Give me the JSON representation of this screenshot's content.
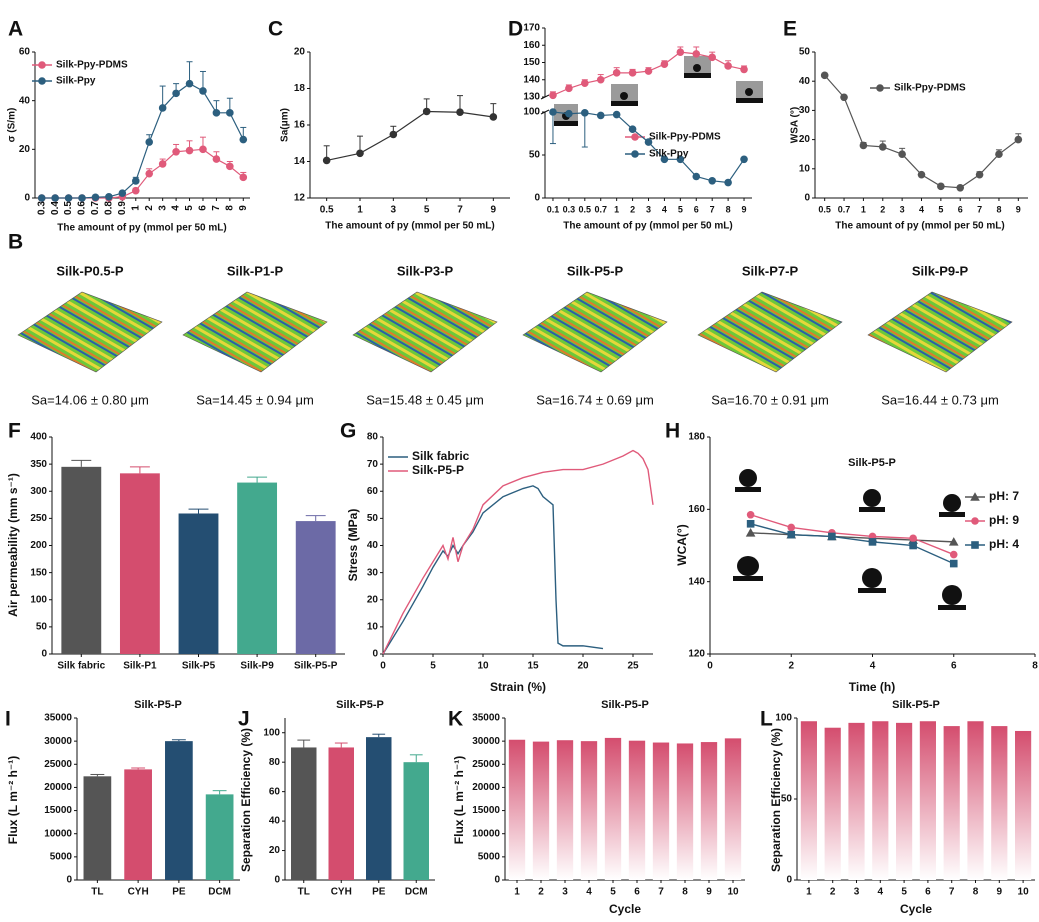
{
  "chart_data": [
    {
      "type": "line",
      "panel": "A",
      "xlabel": "The amount of py (mmol per 50 mL)",
      "ylabel": "σ (S/m)",
      "categories": [
        "0.3",
        "0.4",
        "0.5",
        "0.6",
        "0.7",
        "0.8",
        "0.9",
        "1",
        "2",
        "3",
        "4",
        "5",
        "6",
        "7",
        "8",
        "9"
      ],
      "ylim": [
        0,
        60
      ],
      "yticks": [
        0,
        20,
        40,
        60
      ],
      "series": [
        {
          "name": "Silk-Ppy-PDMS",
          "color": "#e05a7a",
          "values": [
            0,
            0,
            0,
            0,
            0,
            0,
            0.5,
            3,
            10,
            14,
            19,
            19.5,
            20,
            16,
            13,
            8.5
          ],
          "errors": [
            0,
            0,
            0,
            0,
            0,
            0,
            0.3,
            1,
            2,
            2,
            3,
            4,
            5,
            3,
            2,
            2
          ]
        },
        {
          "name": "Silk-Ppy",
          "color": "#2c5f7f",
          "values": [
            0,
            0,
            0,
            0,
            0.3,
            0.5,
            2,
            7,
            23,
            37,
            43,
            47,
            44,
            35,
            35,
            24
          ],
          "errors": [
            0,
            0,
            0,
            0,
            0.2,
            0.3,
            0.5,
            1.5,
            3,
            9,
            4,
            9,
            8,
            5,
            6,
            5
          ]
        }
      ]
    },
    {
      "type": "line",
      "panel": "C",
      "xlabel": "The amount of py (mmol per 50 mL)",
      "ylabel": "Sa(μm)",
      "categories": [
        "0.5",
        "1",
        "3",
        "5",
        "7",
        "9"
      ],
      "ylim": [
        12,
        20
      ],
      "yticks": [
        12,
        14,
        16,
        18,
        20
      ],
      "series": [
        {
          "color": "#333333",
          "values": [
            14.06,
            14.45,
            15.48,
            16.74,
            16.7,
            16.44
          ],
          "errors": [
            0.8,
            0.94,
            0.45,
            0.69,
            0.91,
            0.73
          ]
        }
      ]
    },
    {
      "type": "line",
      "panel": "D",
      "xlabel": "The amount of py (mmol per 50 mL)",
      "categories": [
        "0.1",
        "0.3",
        "0.5",
        "0.7",
        "1",
        "2",
        "3",
        "4",
        "5",
        "6",
        "7",
        "8",
        "9"
      ],
      "ylim": [
        0,
        170
      ],
      "ybreak": [
        100,
        130
      ],
      "yticks": [
        0,
        50,
        100,
        130,
        140,
        150,
        160,
        170
      ],
      "series": [
        {
          "name": "Silk-Ppy-PDMS",
          "color": "#e05a7a",
          "values": [
            131,
            135,
            138,
            140,
            144,
            144,
            145,
            149,
            156,
            155,
            153,
            148,
            146
          ],
          "errors": [
            2,
            2,
            2,
            3,
            3,
            2,
            2,
            2,
            3,
            4,
            3,
            3,
            2
          ]
        },
        {
          "name": "Silk-Ppy",
          "color": "#2c5f7f",
          "values": [
            100,
            98,
            99,
            96,
            97,
            80,
            65,
            45,
            45,
            25,
            20,
            18,
            45
          ],
          "errors": [
            3,
            2,
            2,
            2,
            2,
            2,
            2,
            2,
            2,
            2,
            2,
            2,
            2
          ]
        }
      ]
    },
    {
      "type": "line",
      "panel": "E",
      "xlabel": "The amount of py (mmol per 50 mL)",
      "ylabel": "WSA (°)",
      "categories": [
        "0.5",
        "0.7",
        "1",
        "2",
        "3",
        "4",
        "5",
        "6",
        "7",
        "8",
        "9"
      ],
      "ylim": [
        0,
        50
      ],
      "yticks": [
        0,
        10,
        20,
        30,
        40,
        50
      ],
      "series": [
        {
          "name": "Silk-Ppy-PDMS",
          "color": "#555555",
          "values": [
            42,
            34.5,
            18,
            17.5,
            15,
            8,
            4,
            3.5,
            8,
            15,
            20
          ],
          "errors": [
            0,
            0,
            1,
            2,
            2,
            0.5,
            0.5,
            0.5,
            1,
            1.5,
            2
          ]
        }
      ]
    },
    {
      "type": "image_grid",
      "panel": "B",
      "items": [
        {
          "title": "Silk-P0.5-P",
          "caption": "Sa=14.06 ± 0.80 μm"
        },
        {
          "title": "Silk-P1-P",
          "caption": "Sa=14.45 ± 0.94 μm"
        },
        {
          "title": "Silk-P3-P",
          "caption": "Sa=15.48 ± 0.45 μm"
        },
        {
          "title": "Silk-P5-P",
          "caption": "Sa=16.74 ± 0.69 μm"
        },
        {
          "title": "Silk-P7-P",
          "caption": "Sa=16.70 ± 0.91 μm"
        },
        {
          "title": "Silk-P9-P",
          "caption": "Sa=16.44 ± 0.73 μm"
        }
      ]
    },
    {
      "type": "bar",
      "panel": "F",
      "ylabel": "Air permeability (mm s⁻¹)",
      "categories": [
        "Silk fabric",
        "Silk-P1",
        "Silk-P5",
        "Silk-P9",
        "Silk-P5-P"
      ],
      "values": [
        345,
        333,
        259,
        316,
        245
      ],
      "errors": [
        12,
        12,
        8,
        10,
        10
      ],
      "colors": [
        "#555555",
        "#d44d6e",
        "#244e72",
        "#43a98e",
        "#6c6aa6"
      ],
      "ylim": [
        0,
        400
      ],
      "yticks": [
        0,
        50,
        100,
        150,
        200,
        250,
        300,
        350,
        400
      ]
    },
    {
      "type": "xyline",
      "panel": "G",
      "xlabel": "Strain (%)",
      "ylabel": "Stress (MPa)",
      "xlim": [
        0,
        27
      ],
      "xticks": [
        0,
        5,
        10,
        15,
        20,
        25
      ],
      "ylim": [
        0,
        80
      ],
      "yticks": [
        0,
        10,
        20,
        30,
        40,
        50,
        60,
        70,
        80
      ],
      "series": [
        {
          "name": "Silk fabric",
          "color": "#2c5f7f",
          "x": [
            0,
            2,
            4,
            5,
            6,
            6.5,
            7,
            7.5,
            8,
            9,
            10,
            12,
            14,
            15,
            15.5,
            16,
            17,
            17.3,
            17.5,
            18,
            20,
            21,
            22
          ],
          "values": [
            0,
            12,
            25,
            32,
            38,
            36,
            40,
            37,
            40,
            45,
            52,
            58,
            61,
            62,
            61,
            58,
            55,
            20,
            4,
            3,
            3,
            2.5,
            2
          ]
        },
        {
          "name": "Silk-P5-P",
          "color": "#e05a7a",
          "x": [
            0,
            2,
            4,
            5.5,
            6,
            6.5,
            7,
            7.5,
            8,
            9,
            10,
            12,
            14,
            16,
            18,
            20,
            22,
            24,
            25,
            25.5,
            26,
            26.5,
            27
          ],
          "values": [
            0,
            15,
            28,
            37,
            40,
            35,
            43,
            34,
            40,
            46,
            55,
            62,
            65,
            67,
            68,
            68,
            70,
            73,
            75,
            74,
            72,
            68,
            55
          ]
        }
      ]
    },
    {
      "type": "xyline",
      "panel": "H",
      "title": "Silk-P5-P",
      "xlabel": "Time (h)",
      "ylabel": "WCA(°)",
      "markers": true,
      "xlim": [
        0,
        8
      ],
      "xticks": [
        0,
        2,
        4,
        6,
        8
      ],
      "ylim": [
        120,
        180
      ],
      "yticks": [
        120,
        140,
        160,
        180
      ],
      "series": [
        {
          "name": "pH: 7",
          "color": "#555555",
          "marker": "triangle",
          "x": [
            1,
            2,
            3,
            4,
            5,
            6
          ],
          "values": [
            153.5,
            153,
            152.5,
            152,
            151.5,
            151
          ]
        },
        {
          "name": "pH: 9",
          "color": "#e05a7a",
          "marker": "circle",
          "x": [
            1,
            2,
            3,
            4,
            5,
            6
          ],
          "values": [
            158.5,
            155,
            153.5,
            152.5,
            152,
            147.5
          ]
        },
        {
          "name": "pH: 4",
          "color": "#2c5f7f",
          "marker": "square",
          "x": [
            1,
            2,
            3,
            4,
            5,
            6
          ],
          "values": [
            156,
            153,
            152.5,
            151,
            150,
            145
          ]
        }
      ]
    },
    {
      "type": "bar",
      "panel": "I",
      "title": "Silk-P5-P",
      "ylabel": "Flux (L m⁻² h⁻¹)",
      "categories": [
        "TL",
        "CYH",
        "PE",
        "DCM"
      ],
      "values": [
        22400,
        23900,
        30000,
        18500
      ],
      "errors": [
        400,
        300,
        300,
        800
      ],
      "colors": [
        "#555555",
        "#d44d6e",
        "#244e72",
        "#43a98e"
      ],
      "ylim": [
        0,
        35000
      ],
      "yticks": [
        0,
        5000,
        10000,
        15000,
        20000,
        25000,
        30000,
        35000
      ]
    },
    {
      "type": "bar",
      "panel": "J",
      "title": "Silk-P5-P",
      "ylabel": "Separation Efficiency (%)",
      "categories": [
        "TL",
        "CYH",
        "PE",
        "DCM"
      ],
      "values": [
        90,
        90,
        97,
        80
      ],
      "errors": [
        5,
        3,
        2,
        5
      ],
      "colors": [
        "#555555",
        "#d44d6e",
        "#244e72",
        "#43a98e"
      ],
      "ylim": [
        0,
        110
      ],
      "yticks": [
        0,
        20,
        40,
        60,
        80,
        100
      ]
    },
    {
      "type": "bar",
      "panel": "K",
      "title": "Silk-P5-P",
      "xlabel": "Cycle",
      "ylabel": "Flux (L m⁻² h⁻¹)",
      "color": "#d44d6e",
      "gradient": true,
      "categories": [
        "1",
        "2",
        "3",
        "4",
        "5",
        "6",
        "7",
        "8",
        "9",
        "10"
      ],
      "values": [
        30300,
        29900,
        30200,
        30000,
        30700,
        30100,
        29700,
        29500,
        29800,
        30600
      ],
      "ylim": [
        0,
        35000
      ],
      "yticks": [
        0,
        5000,
        10000,
        15000,
        20000,
        25000,
        30000,
        35000
      ]
    },
    {
      "type": "bar",
      "panel": "L",
      "title": "Silk-P5-P",
      "xlabel": "Cycle",
      "ylabel": "Separation Efficiency (%)",
      "color": "#d44d6e",
      "gradient": true,
      "categories": [
        "1",
        "2",
        "3",
        "4",
        "5",
        "6",
        "7",
        "8",
        "9",
        "10"
      ],
      "values": [
        98,
        94,
        97,
        98,
        97,
        98,
        95,
        98,
        95,
        92
      ],
      "ylim": [
        0,
        100
      ],
      "yticks": [
        0,
        50,
        100
      ]
    }
  ]
}
